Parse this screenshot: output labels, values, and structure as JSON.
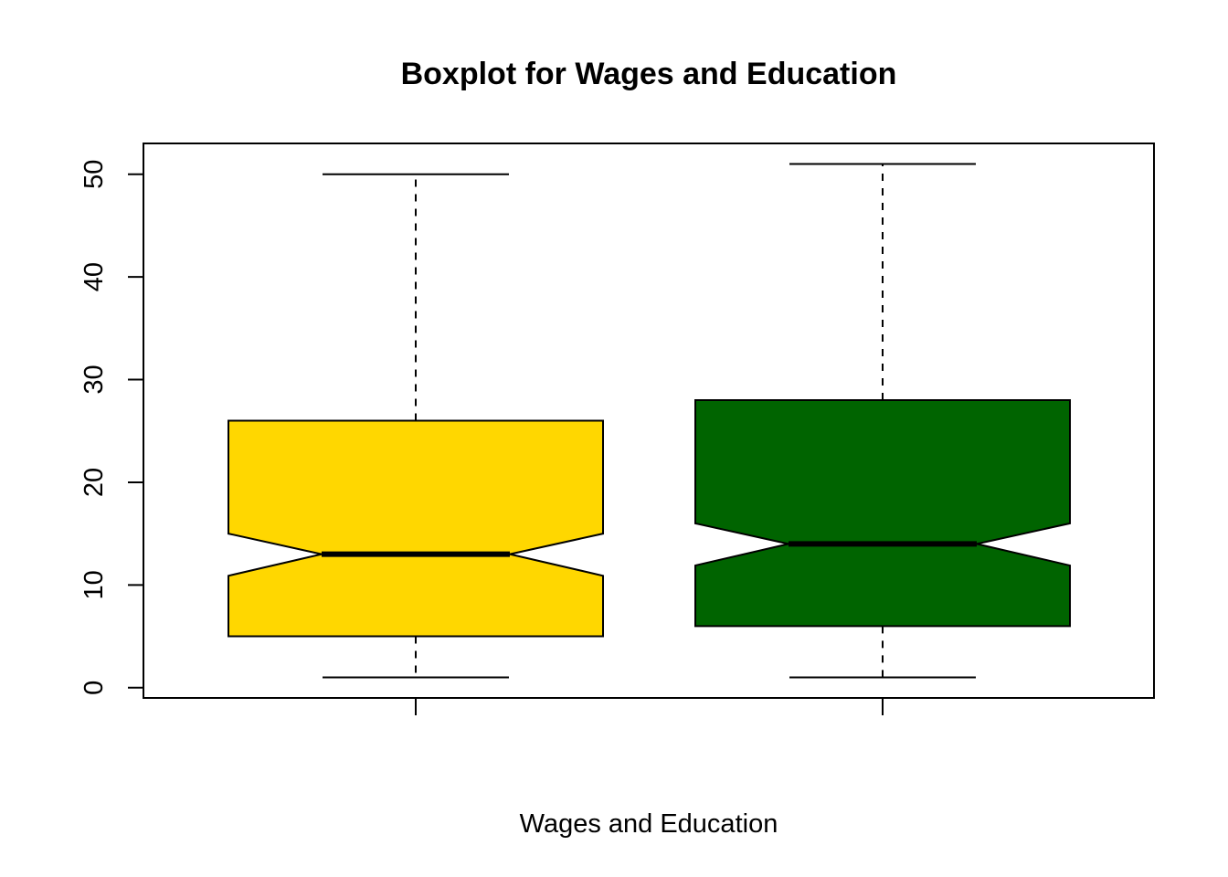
{
  "chart_data": {
    "type": "boxplot",
    "title": "Boxplot for Wages and Education",
    "xlabel": "Wages and Education",
    "ylabel": "",
    "ylim": [
      -1,
      53
    ],
    "yticks": [
      0,
      10,
      20,
      30,
      40,
      50
    ],
    "notched": true,
    "grid": false,
    "legend": "none",
    "boxes": [
      {
        "whisker_low": 1,
        "q1": 5,
        "median": 13,
        "q3": 26,
        "whisker_high": 50,
        "notch_low": 10.9,
        "notch_high": 15,
        "color": "#FFD700"
      },
      {
        "whisker_low": 1,
        "q1": 6,
        "median": 14,
        "q3": 28,
        "whisker_high": 51,
        "notch_low": 11.9,
        "notch_high": 16,
        "color": "#006400"
      }
    ]
  }
}
